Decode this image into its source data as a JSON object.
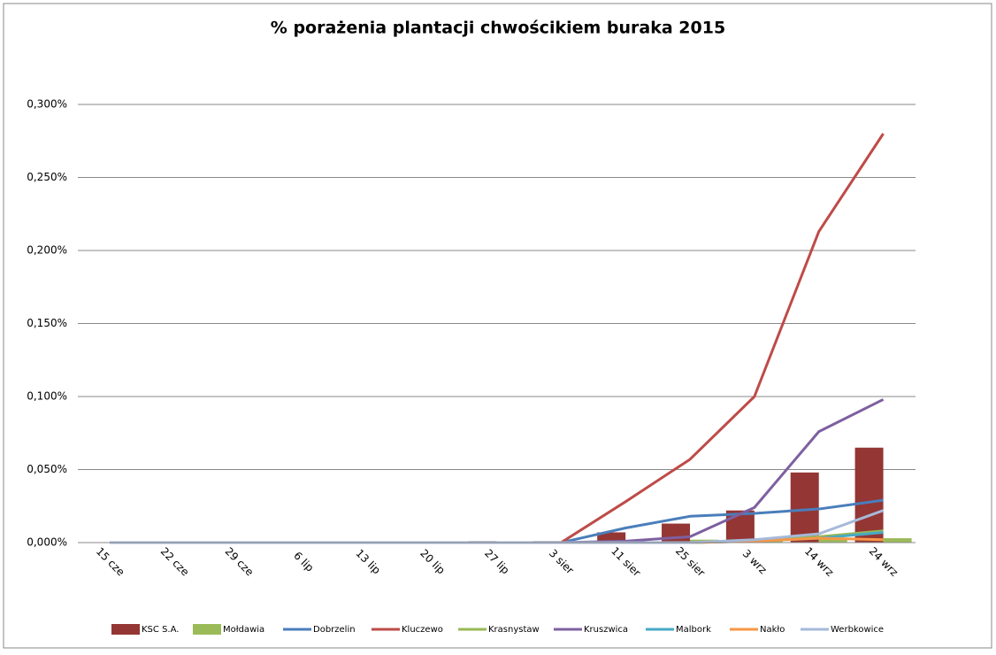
{
  "chart_data": {
    "type": "combo",
    "title": "%  porażenia plantacji chwościkiem buraka 2015",
    "categories": [
      "15 cze",
      "22 cze",
      "29 cze",
      "6 lip",
      "13 lip",
      "20 lip",
      "27 lip",
      "3 sier",
      "11 sier",
      "25 sier",
      "3 wrz",
      "14 wrz",
      "24 wrz"
    ],
    "ylim": [
      0,
      0.3
    ],
    "yticks": [
      {
        "value": 0,
        "label": "0,000%"
      },
      {
        "value": 0.05,
        "label": "0,050%"
      },
      {
        "value": 0.1,
        "label": "0,100%"
      },
      {
        "value": 0.15,
        "label": "0,150%"
      },
      {
        "value": 0.2,
        "label": "0,200%"
      },
      {
        "value": 0.25,
        "label": "0,250%"
      },
      {
        "value": 0.3,
        "label": "0,300%"
      }
    ],
    "grid": true,
    "series": [
      {
        "name": "KSC S.A.",
        "type": "bar",
        "color": "#943634",
        "values": [
          0,
          0,
          0,
          0,
          0,
          0,
          0.001,
          0.001,
          0.007,
          0.013,
          0.022,
          0.048,
          0.065
        ]
      },
      {
        "name": "Mołdawia",
        "type": "bar",
        "color": "#9bbb59",
        "values": [
          0,
          0,
          0,
          0,
          0,
          0,
          0,
          0,
          0,
          0.002,
          0.003,
          0.003,
          0.003
        ]
      },
      {
        "name": "Dobrzelin",
        "type": "line",
        "color": "#4a7ebb",
        "values": [
          0,
          0,
          0,
          0,
          0,
          0,
          0,
          0,
          0.01,
          0.018,
          0.02,
          0.023,
          0.029
        ]
      },
      {
        "name": "Kluczewo",
        "type": "line",
        "color": "#be4b48",
        "values": [
          0,
          0,
          0,
          0,
          0,
          0,
          0,
          0,
          0.028,
          0.057,
          0.1,
          0.213,
          0.28
        ]
      },
      {
        "name": "Krasnystaw",
        "type": "line",
        "color": "#98b954",
        "values": [
          0,
          0,
          0,
          0,
          0,
          0,
          0,
          0,
          0,
          0,
          0.001,
          0.004,
          0.008
        ]
      },
      {
        "name": "Kruszwica",
        "type": "line",
        "color": "#7d60a0",
        "values": [
          0,
          0,
          0,
          0,
          0,
          0,
          0,
          0,
          0.001,
          0.004,
          0.024,
          0.076,
          0.098
        ]
      },
      {
        "name": "Malbork",
        "type": "line",
        "color": "#46aac5",
        "values": [
          0,
          0,
          0,
          0,
          0,
          0,
          0,
          0,
          0,
          0,
          0.001,
          0.003,
          0.007
        ]
      },
      {
        "name": "Nakło",
        "type": "line",
        "color": "#f79646",
        "values": [
          0,
          0,
          0,
          0,
          0,
          0,
          0,
          0,
          0,
          0,
          0.001,
          0.003,
          0.002
        ]
      },
      {
        "name": "Werbkowice",
        "type": "line",
        "color": "#a5b9d9",
        "values": [
          0,
          0,
          0,
          0,
          0,
          0,
          0,
          0,
          0,
          0,
          0.002,
          0.006,
          0.022
        ]
      }
    ]
  }
}
